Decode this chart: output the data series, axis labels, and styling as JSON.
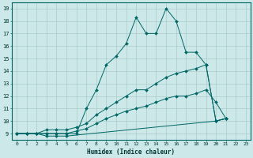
{
  "xlabel": "Humidex (Indice chaleur)",
  "ylabel": "",
  "xlim": [
    -0.5,
    23.5
  ],
  "ylim": [
    8.5,
    19.5
  ],
  "yticks": [
    9,
    10,
    11,
    12,
    13,
    14,
    15,
    16,
    17,
    18,
    19
  ],
  "xticks": [
    0,
    1,
    2,
    3,
    4,
    5,
    6,
    7,
    8,
    9,
    10,
    11,
    12,
    13,
    14,
    15,
    16,
    17,
    18,
    19,
    20,
    21,
    22,
    23
  ],
  "background_color": "#cce8e8",
  "grid_color": "#aacccc",
  "line_color": "#006666",
  "series": [
    {
      "x": [
        0,
        1,
        2,
        3,
        4,
        5,
        6,
        7,
        8,
        9,
        10,
        11,
        12,
        13,
        14,
        15,
        16,
        17,
        18,
        19,
        20,
        21
      ],
      "y": [
        9,
        9,
        9,
        9,
        9,
        9,
        9,
        11,
        12.5,
        14.5,
        15.2,
        16.2,
        18.3,
        17.0,
        17.0,
        19.0,
        18.0,
        15.5,
        15.5,
        14.5,
        10.0,
        10.2
      ]
    },
    {
      "x": [
        0,
        1,
        2,
        3,
        4,
        5,
        6,
        7,
        8,
        9,
        10,
        11,
        12,
        13,
        14,
        15,
        16,
        17,
        18,
        19,
        20,
        21
      ],
      "y": [
        9,
        9,
        9,
        9.3,
        9.3,
        9.3,
        9.5,
        9.8,
        10.5,
        11.0,
        11.5,
        12.0,
        12.5,
        12.5,
        13.0,
        13.5,
        13.8,
        14.0,
        14.2,
        14.5,
        10.0,
        10.2
      ]
    },
    {
      "x": [
        0,
        1,
        2,
        3,
        4,
        5,
        6,
        7,
        8,
        9,
        10,
        11,
        12,
        13,
        14,
        15,
        16,
        17,
        18,
        19,
        20,
        21
      ],
      "y": [
        9,
        9,
        9,
        9.0,
        9.0,
        9.0,
        9.2,
        9.4,
        9.8,
        10.2,
        10.5,
        10.8,
        11.0,
        11.2,
        11.5,
        11.8,
        12.0,
        12.0,
        12.2,
        12.5,
        11.5,
        10.2
      ]
    },
    {
      "x": [
        0,
        1,
        2,
        3,
        4,
        5,
        20,
        21
      ],
      "y": [
        9,
        9,
        9,
        8.8,
        8.8,
        8.8,
        10.0,
        10.2
      ]
    }
  ]
}
